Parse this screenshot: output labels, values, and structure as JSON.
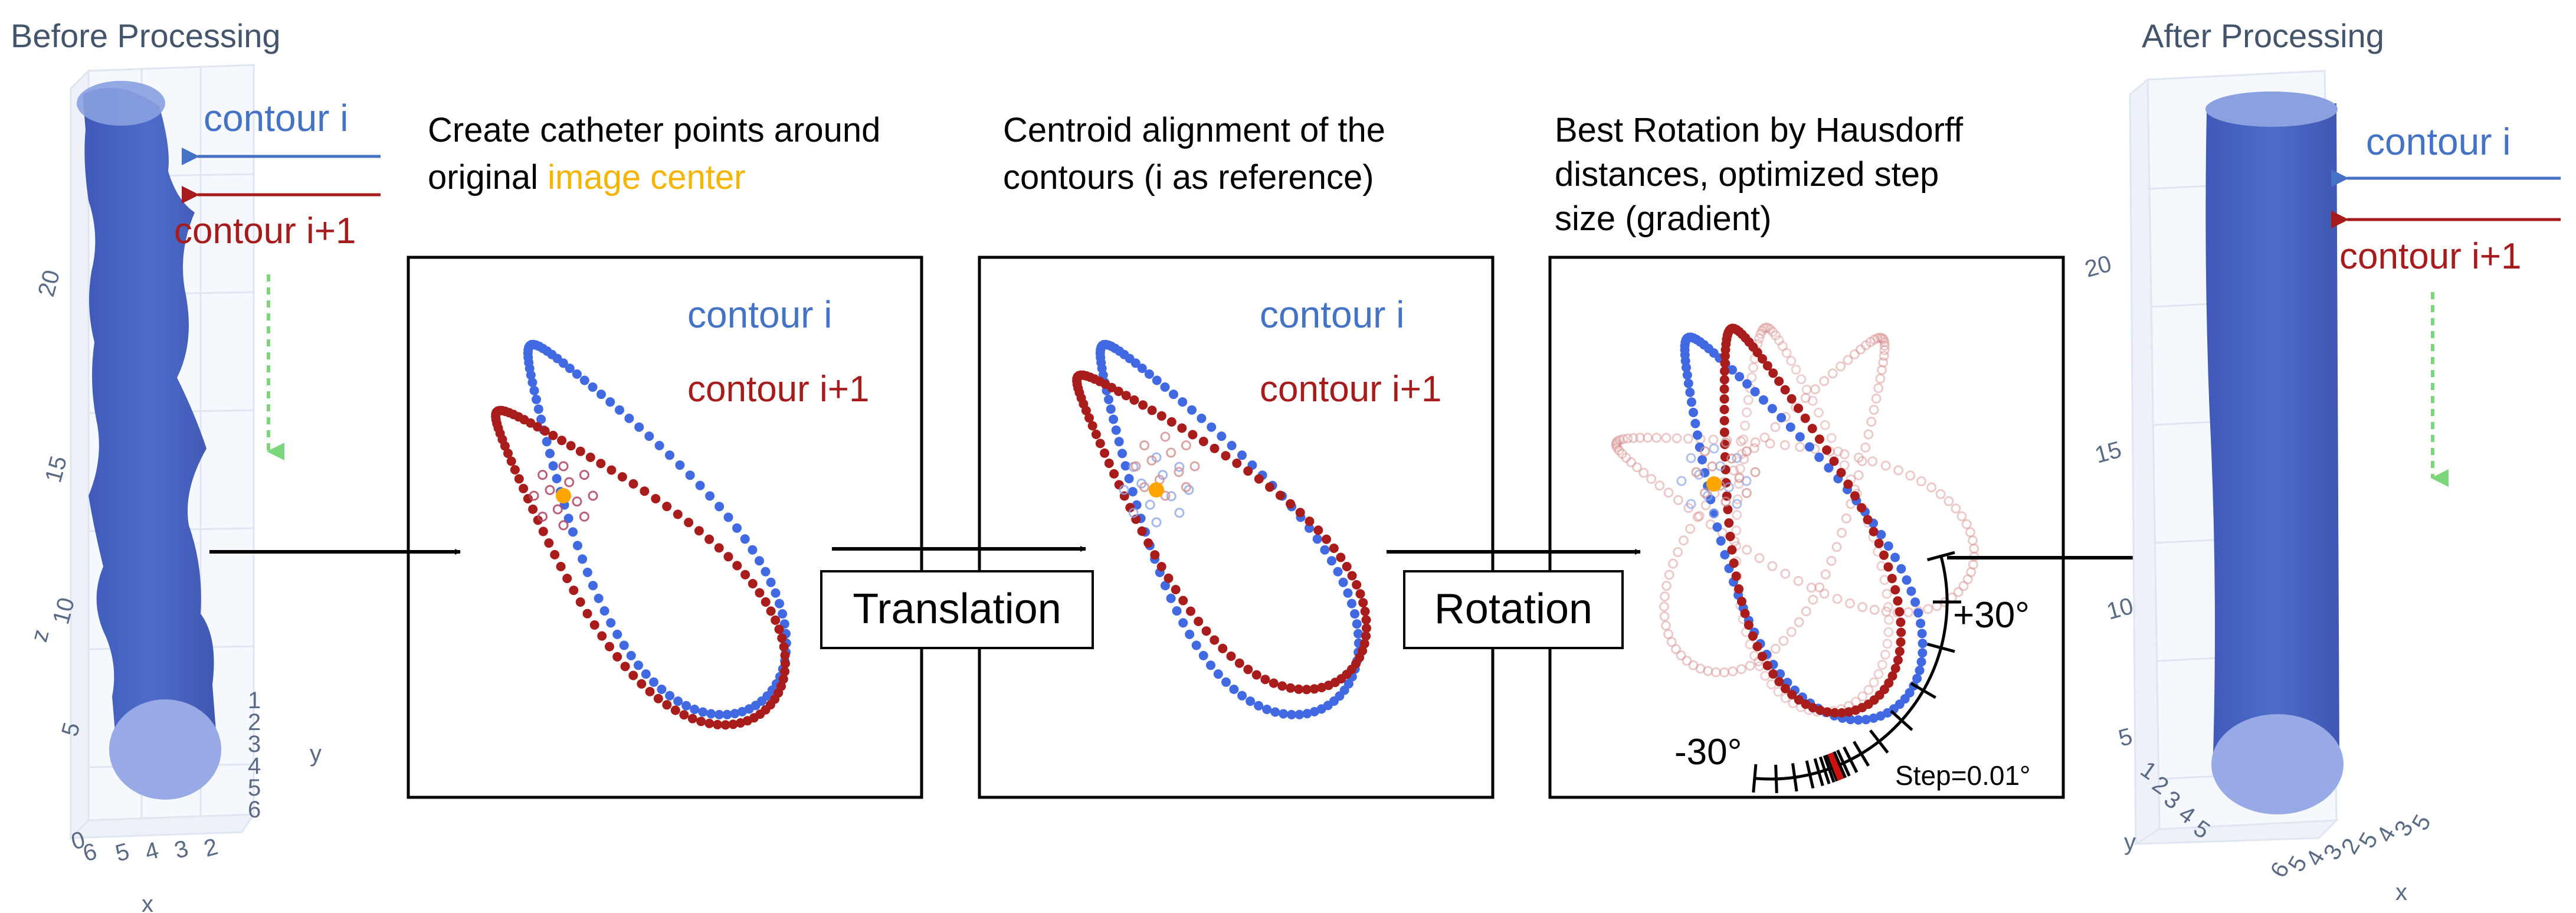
{
  "panels": {
    "before": {
      "title": "Before Processing",
      "label_i": "contour i",
      "label_i1": "contour i+1",
      "z_ticks": [
        "20",
        "15",
        "10",
        "5"
      ],
      "z_label": "z",
      "y_ticks": [
        "1",
        "2",
        "3",
        "4",
        "5",
        "6"
      ],
      "y_label": "y",
      "x_ticks": [
        "0",
        "6",
        "5",
        "4",
        "3",
        "2"
      ],
      "x_label": "x"
    },
    "after": {
      "title": "After Processing",
      "label_i": "contour i",
      "label_i1": "contour i+1",
      "z_ticks": [
        "20",
        "15",
        "10",
        "5"
      ],
      "y_ticks": [
        "1",
        "2",
        "3",
        "4",
        "5"
      ],
      "y_label": "y",
      "x_ticks": [
        "6",
        "5",
        "4",
        "3",
        "2",
        "5",
        "4",
        "3",
        "5"
      ],
      "x_label": "x"
    }
  },
  "steps": {
    "create": {
      "caption_line1": "Create catheter points around",
      "caption_line2_prefix": "original ",
      "caption_line2_highlight": "image center",
      "label_i": "contour i",
      "label_i1": "contour i+1"
    },
    "align": {
      "caption_line1": "Centroid alignment of the",
      "caption_line2": "contours (i as reference)",
      "label_i": "contour i",
      "label_i1": "contour i+1"
    },
    "rotate": {
      "caption_line1": "Best Rotation by Hausdorff",
      "caption_line2": "distances, optimized step",
      "caption_line3": "size (gradient)",
      "plus_label": "+30°",
      "minus_label": "-30°",
      "step_label": "Step=0.01°"
    }
  },
  "operations": {
    "translation": "Translation",
    "rotation": "Rotation"
  },
  "colors": {
    "contour_i": "#4169e1",
    "contour_i1": "#a81c1c",
    "center": "#ffa500",
    "vessel": "#4a66c0",
    "arrow_down": "#7cd67c",
    "highlight_text": "#f5b400"
  }
}
